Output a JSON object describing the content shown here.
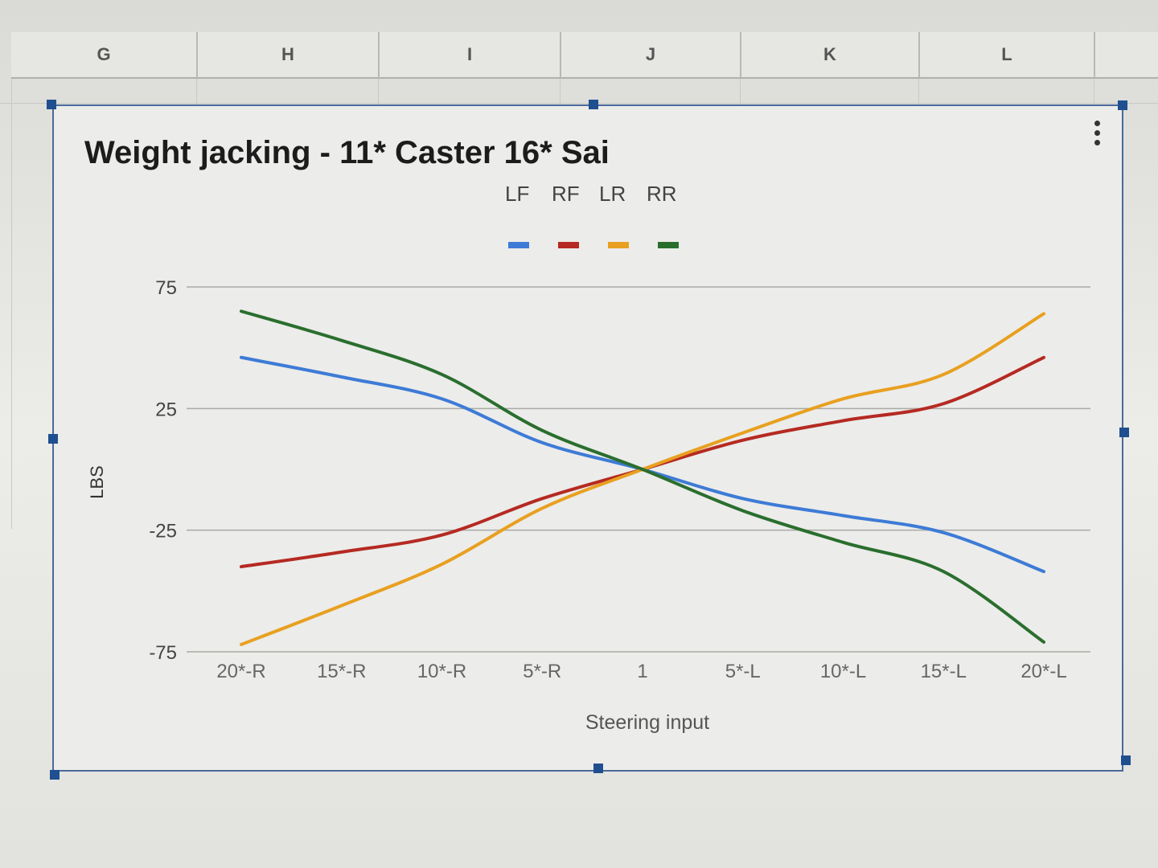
{
  "spreadsheet": {
    "columns": [
      "G",
      "H",
      "I",
      "J",
      "K",
      "L"
    ]
  },
  "chart_data": {
    "type": "line",
    "title": "Weight jacking - 11* Caster 16* Sai",
    "xlabel": "Steering input",
    "ylabel": "LBS",
    "categories": [
      "20*-R",
      "15*-R",
      "10*-R",
      "5*-R",
      "1",
      "5*-L",
      "10*-L",
      "15*-L",
      "20*-L"
    ],
    "ylim": [
      -75,
      75
    ],
    "yticks": [
      75,
      25,
      -25,
      -75
    ],
    "grid": true,
    "legend_position": "top",
    "series": [
      {
        "name": "LF",
        "color": "#3d7bd6",
        "values": [
          46,
          38,
          29,
          11,
          0,
          -12,
          -19,
          -26,
          -42
        ]
      },
      {
        "name": "RF",
        "color": "#b52a22",
        "values": [
          -40,
          -34,
          -27,
          -12,
          0,
          12,
          20,
          27,
          46
        ]
      },
      {
        "name": "LR",
        "color": "#e8a020",
        "values": [
          -72,
          -56,
          -39,
          -16,
          0,
          15,
          29,
          39,
          64
        ]
      },
      {
        "name": "RR",
        "color": "#2a6e2e",
        "values": [
          65,
          53,
          39,
          16,
          0,
          -17,
          -30,
          -42,
          -71
        ]
      }
    ]
  }
}
